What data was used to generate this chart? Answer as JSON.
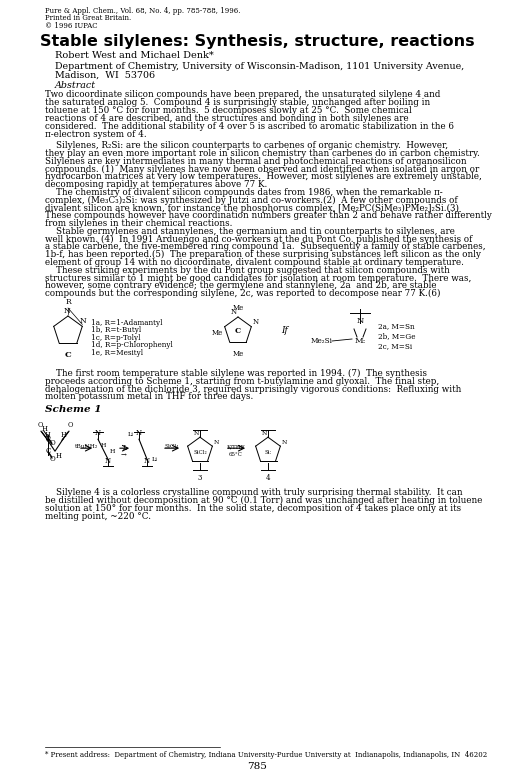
{
  "background_color": "#ffffff",
  "header_line1": "Pure & Appl. Chem., Vol. 68, No. 4, pp. 785-788, 1996.",
  "header_line2": "Printed in Great Britain.",
  "header_line3": "© 1996 IUPAC",
  "title": "Stable silylenes: Synthesis, structure, reactions",
  "authors": "Robert West and Michael Denk*",
  "affiliation1": "Department of Chemistry, University of Wisconsin-Madison, 1101 University Avenue,",
  "affiliation2": "Madison,  WI  53706",
  "abstract_label": "Abstract",
  "abstract_text": "Two dicoordinate silicon compounds have been prepared, the unsaturated silylene 4 and\nthe saturated analog 5.  Compound 4 is surprisingly stable, unchanged after boiling in\ntoluene at 150 °C for four months.  5 decomposes slowly at 25 °C.  Some chemical\nreactions of 4 are described, and the structures and bonding in both silylenes are\nconsidered.  The additional stability of 4 over 5 is ascribed to aromatic stabilization in the 6\nπ-electron system of 4.",
  "body_p1": "    Silylenes, R₂Si: are the silicon counterparts to carbenes of organic chemistry.  However,\nthey play an even more important role in silicon chemistry than carbenes do in carbon chemistry.\nSilylenes are key intermediates in many thermal and photochemical reactions of organosilicon\ncompounds. (1)  Many silylenes have now been observed and identified when isolated in argon or\nhydrocarbon matrices at very low temperatures.  However, most silylenes are extremely unstable,\ndecomposing rapidly at temperatures above 77 K.",
  "body_p2": "    The chemistry of divalent silicon compounds dates from 1986, when the remarkable π-\ncomplex, (Me₃C₃)₂Si: was synthesized by Jutzi and co-workers.(2)  A few other compounds of\ndivalent silicon are known, for instance the phosphorus complex, [Me₂PC(SiMe₃)PMe₂]₂Si.(3)\nThese compounds however have coordination numbers greater than 2 and behave rather differently\nfrom silylenes in their chemical reactions.",
  "body_p3": "    Stable germylenes and stannylenes, the germanium and tin counterparts to silylenes, are\nwell known. (4)  In 1991 Arduengo and co-workers at the du Pont Co. published the synthesis of\na stable carbene, the five-membered ring compound 1a.  Subsequently a family of stable carbenes,\n1b-f, has been reported.(5)  The preparation of these surprising substances left silicon as the only\nelement of group 14 with no dicoordinate, divalent compound stable at ordinary temperature.",
  "body_p4": "    These striking experiments by the du Pont group suggested that silicon compounds with\nstructures similar to 1 might be good candidates for isolation at room temperature.  There was,\nhowever, some contrary evidence; the germylene and stannylene, 2a  and 2b, are stable\ncompounds but the corresponding silylene, 2c, was reported to decompose near 77 K.(6)",
  "para_scheme_intro": "    The first room temperature stable silylene was reported in 1994. (7)  The synthesis\nproceeds according to Scheme 1, starting from t-butylamine and glyoxal.  The final step,\ndehalogenation of the dichloride 3, required surprisingly vigorous conditions:  Refluxing with\nmolten potassium metal in THF for three days.",
  "scheme1_label": "Scheme 1",
  "last_para": "    Silylene 4 is a colorless crystalline compound with truly surprising thermal stability.  It can\nbe distilled without decomposition at 90 °C (0.1 Torr) and was unchanged after heating in toluene\nsolution at 150° for four months.  In the solid state, decomposition of 4 takes place only at its\nmelting point, ~220 °C.",
  "footer_text": "* Present address:  Department of Chemistry, Indiana University-Purdue University at  Indianapolis, Indianapolis, IN  46202",
  "page_number": "785",
  "lm": 45,
  "rm": 470,
  "dpi": 100,
  "figw": 5.13,
  "figh": 7.69
}
